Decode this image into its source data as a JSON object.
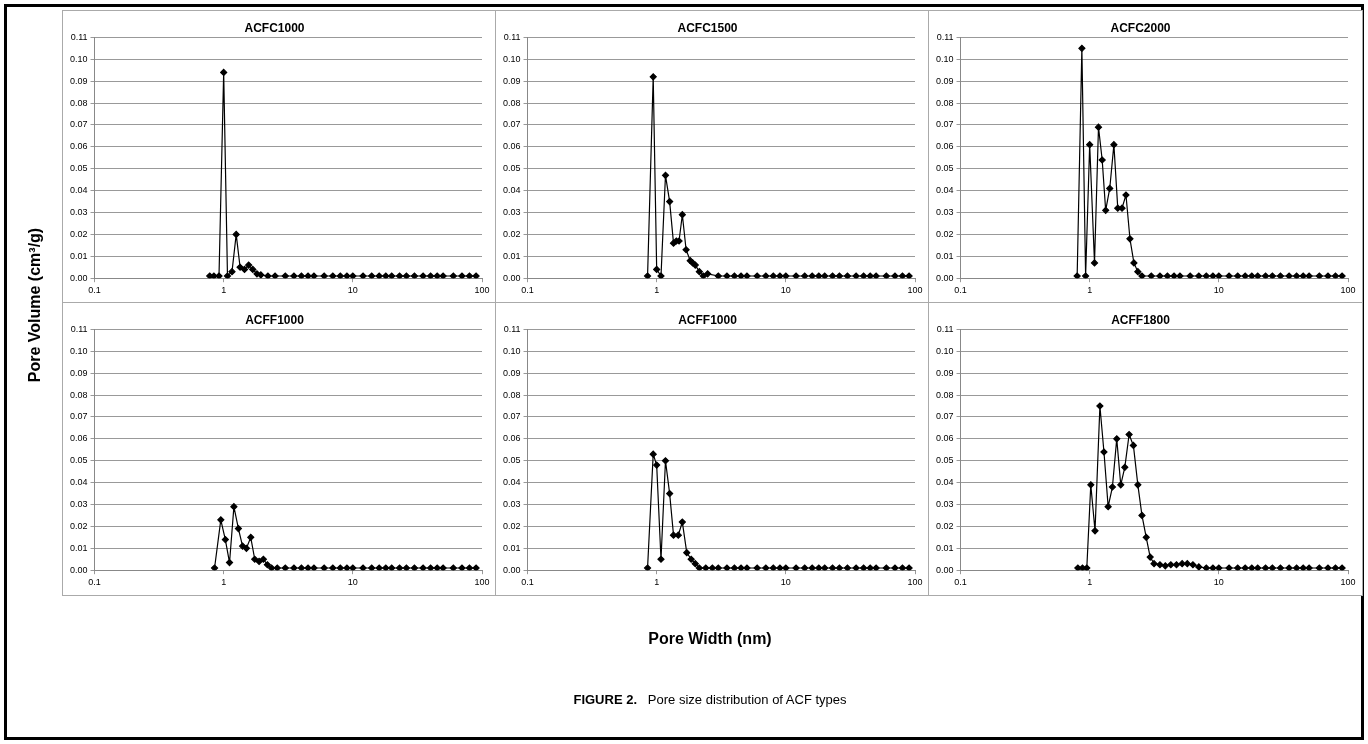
{
  "chart_data": [
    {
      "type": "line",
      "title": "ACFC1000",
      "ylabel": "Pore Volume (cm³/g)",
      "log": "x",
      "grid": "y",
      "marker": "diamond",
      "xlim": [
        0.1,
        100
      ],
      "xticks": [
        0.1,
        1,
        10,
        100
      ],
      "ylim": [
        0,
        0.11
      ],
      "yticks": [
        {
          "value": 0,
          "label": "0.00"
        },
        {
          "value": 0.01,
          "label": "0.01"
        },
        {
          "value": 0.02,
          "label": "0.02"
        },
        {
          "value": 0.03,
          "label": "0.03"
        },
        {
          "value": 0.04,
          "label": "0.04"
        },
        {
          "value": 0.05,
          "label": "0.05"
        },
        {
          "value": 0.06,
          "label": "0.06"
        },
        {
          "value": 0.07,
          "label": "0.07"
        },
        {
          "value": 0.08,
          "label": "0.08"
        },
        {
          "value": 0.09,
          "label": "0.09"
        },
        {
          "value": 0.1,
          "label": "0.10"
        },
        {
          "value": 0.11,
          "label": "0.11"
        }
      ],
      "series": [
        {
          "color": "#000000",
          "x": [
            0.78,
            0.84,
            0.92,
            1.0,
            1.07,
            1.16,
            1.25,
            1.34,
            1.45,
            1.56,
            1.68,
            1.81,
            1.94,
            2.2,
            2.5,
            3,
            3.5,
            4,
            4.5,
            5,
            6,
            7,
            8,
            9,
            10,
            12,
            14,
            16,
            18,
            20,
            23,
            26,
            30,
            35,
            40,
            45,
            50,
            60,
            70,
            80,
            90
          ],
          "values": [
            0.001,
            0.001,
            0.001,
            0.094,
            0.001,
            0.003,
            0.02,
            0.005,
            0.004,
            0.006,
            0.004,
            0.002,
            0.0015,
            0.001,
            0.001,
            0.001,
            0.001,
            0.001,
            0.001,
            0.001,
            0.001,
            0.001,
            0.001,
            0.001,
            0.001,
            0.001,
            0.001,
            0.001,
            0.001,
            0.001,
            0.001,
            0.001,
            0.001,
            0.001,
            0.001,
            0.001,
            0.001,
            0.001,
            0.001,
            0.001,
            0.001
          ]
        }
      ]
    },
    {
      "type": "line",
      "title": "ACFC1500",
      "log": "x",
      "grid": "y",
      "marker": "diamond",
      "xlim": [
        0.1,
        100
      ],
      "xticks": [
        0.1,
        1,
        10,
        100
      ],
      "ylim": [
        0,
        0.11
      ],
      "yticks": [
        {
          "value": 0,
          "label": "0.00"
        },
        {
          "value": 0.01,
          "label": "0.01"
        },
        {
          "value": 0.02,
          "label": "0.02"
        },
        {
          "value": 0.03,
          "label": "0.03"
        },
        {
          "value": 0.04,
          "label": "0.04"
        },
        {
          "value": 0.05,
          "label": "0.05"
        },
        {
          "value": 0.06,
          "label": "0.06"
        },
        {
          "value": 0.07,
          "label": "0.07"
        },
        {
          "value": 0.08,
          "label": "0.08"
        },
        {
          "value": 0.09,
          "label": "0.09"
        },
        {
          "value": 0.1,
          "label": "0.10"
        },
        {
          "value": 0.11,
          "label": "0.11"
        }
      ],
      "series": [
        {
          "color": "#000000",
          "x": [
            0.85,
            0.94,
            1.0,
            1.08,
            1.17,
            1.26,
            1.35,
            1.42,
            1.49,
            1.58,
            1.69,
            1.82,
            1.9,
            1.99,
            2.14,
            2.3,
            2.48,
            3,
            3.5,
            4,
            4.5,
            5,
            6,
            7,
            8,
            9,
            10,
            12,
            14,
            16,
            18,
            20,
            23,
            26,
            30,
            35,
            40,
            45,
            50,
            60,
            70,
            80,
            90
          ],
          "values": [
            0.001,
            0.092,
            0.004,
            0.001,
            0.047,
            0.035,
            0.016,
            0.017,
            0.017,
            0.029,
            0.013,
            0.008,
            0.007,
            0.006,
            0.003,
            0.001,
            0.002,
            0.001,
            0.001,
            0.001,
            0.001,
            0.001,
            0.001,
            0.001,
            0.001,
            0.001,
            0.001,
            0.001,
            0.001,
            0.001,
            0.001,
            0.001,
            0.001,
            0.001,
            0.001,
            0.001,
            0.001,
            0.001,
            0.001,
            0.001,
            0.001,
            0.001,
            0.001
          ]
        }
      ]
    },
    {
      "type": "line",
      "title": "ACFC2000",
      "log": "x",
      "grid": "y",
      "marker": "diamond",
      "xlim": [
        0.1,
        100
      ],
      "xticks": [
        0.1,
        1,
        10,
        100
      ],
      "ylim": [
        0,
        0.11
      ],
      "yticks": [
        {
          "value": 0,
          "label": "0.00"
        },
        {
          "value": 0.01,
          "label": "0.01"
        },
        {
          "value": 0.02,
          "label": "0.02"
        },
        {
          "value": 0.03,
          "label": "0.03"
        },
        {
          "value": 0.04,
          "label": "0.04"
        },
        {
          "value": 0.05,
          "label": "0.05"
        },
        {
          "value": 0.06,
          "label": "0.06"
        },
        {
          "value": 0.07,
          "label": "0.07"
        },
        {
          "value": 0.08,
          "label": "0.08"
        },
        {
          "value": 0.09,
          "label": "0.09"
        },
        {
          "value": 0.1,
          "label": "0.10"
        },
        {
          "value": 0.11,
          "label": "0.11"
        }
      ],
      "series": [
        {
          "color": "#000000",
          "x": [
            0.8,
            0.87,
            0.93,
            1.0,
            1.09,
            1.17,
            1.25,
            1.33,
            1.43,
            1.54,
            1.65,
            1.78,
            1.91,
            2.05,
            2.2,
            2.36,
            2.54,
            3,
            3.5,
            4,
            4.5,
            5,
            6,
            7,
            8,
            9,
            10,
            12,
            14,
            16,
            18,
            20,
            23,
            26,
            30,
            35,
            40,
            45,
            50,
            60,
            70,
            80,
            90
          ],
          "values": [
            0.001,
            0.105,
            0.001,
            0.061,
            0.007,
            0.069,
            0.054,
            0.031,
            0.041,
            0.061,
            0.032,
            0.032,
            0.038,
            0.018,
            0.007,
            0.003,
            0.001,
            0.001,
            0.001,
            0.001,
            0.001,
            0.001,
            0.001,
            0.001,
            0.001,
            0.001,
            0.001,
            0.001,
            0.001,
            0.001,
            0.001,
            0.001,
            0.001,
            0.001,
            0.001,
            0.001,
            0.001,
            0.001,
            0.001,
            0.001,
            0.001,
            0.001,
            0.001
          ]
        }
      ]
    },
    {
      "type": "line",
      "title": "ACFF1000",
      "log": "x",
      "grid": "y",
      "marker": "diamond",
      "xlim": [
        0.1,
        100
      ],
      "xticks": [
        0.1,
        1,
        10,
        100
      ],
      "ylim": [
        0,
        0.11
      ],
      "yticks": [
        {
          "value": 0,
          "label": "0.00"
        },
        {
          "value": 0.01,
          "label": "0.01"
        },
        {
          "value": 0.02,
          "label": "0.02"
        },
        {
          "value": 0.03,
          "label": "0.03"
        },
        {
          "value": 0.04,
          "label": "0.04"
        },
        {
          "value": 0.05,
          "label": "0.05"
        },
        {
          "value": 0.06,
          "label": "0.06"
        },
        {
          "value": 0.07,
          "label": "0.07"
        },
        {
          "value": 0.08,
          "label": "0.08"
        },
        {
          "value": 0.09,
          "label": "0.09"
        },
        {
          "value": 0.1,
          "label": "0.10"
        },
        {
          "value": 0.11,
          "label": "0.11"
        }
      ],
      "series": [
        {
          "color": "#000000",
          "x": [
            0.85,
            0.95,
            1.03,
            1.11,
            1.2,
            1.3,
            1.4,
            1.5,
            1.62,
            1.74,
            1.88,
            2.03,
            2.18,
            2.35,
            2.6,
            3,
            3.5,
            4,
            4.5,
            5,
            6,
            7,
            8,
            9,
            10,
            12,
            14,
            16,
            18,
            20,
            23,
            26,
            30,
            35,
            40,
            45,
            50,
            60,
            70,
            80,
            90
          ],
          "values": [
            0.001,
            0.023,
            0.014,
            0.0035,
            0.029,
            0.019,
            0.011,
            0.01,
            0.015,
            0.005,
            0.004,
            0.005,
            0.0025,
            0.001,
            0.001,
            0.001,
            0.001,
            0.001,
            0.001,
            0.001,
            0.001,
            0.001,
            0.001,
            0.001,
            0.001,
            0.001,
            0.001,
            0.001,
            0.001,
            0.001,
            0.001,
            0.001,
            0.001,
            0.001,
            0.001,
            0.001,
            0.001,
            0.001,
            0.001,
            0.001,
            0.001
          ]
        }
      ]
    },
    {
      "type": "line",
      "title": "ACFF1000",
      "xlabel": "Pore Width (nm)",
      "annotations": [
        "FIGURE 2.   Pore size distribution of ACF types"
      ],
      "log": "x",
      "grid": "y",
      "marker": "diamond",
      "xlim": [
        0.1,
        100
      ],
      "xticks": [
        0.1,
        1,
        10,
        100
      ],
      "ylim": [
        0,
        0.11
      ],
      "yticks": [
        {
          "value": 0,
          "label": "0.00"
        },
        {
          "value": 0.01,
          "label": "0.01"
        },
        {
          "value": 0.02,
          "label": "0.02"
        },
        {
          "value": 0.03,
          "label": "0.03"
        },
        {
          "value": 0.04,
          "label": "0.04"
        },
        {
          "value": 0.05,
          "label": "0.05"
        },
        {
          "value": 0.06,
          "label": "0.06"
        },
        {
          "value": 0.07,
          "label": "0.07"
        },
        {
          "value": 0.08,
          "label": "0.08"
        },
        {
          "value": 0.09,
          "label": "0.09"
        },
        {
          "value": 0.1,
          "label": "0.10"
        },
        {
          "value": 0.11,
          "label": "0.11"
        }
      ],
      "series": [
        {
          "color": "#000000",
          "x": [
            0.85,
            0.94,
            1.0,
            1.08,
            1.17,
            1.26,
            1.35,
            1.47,
            1.58,
            1.71,
            1.85,
            1.99,
            2.14,
            2.4,
            2.7,
            3,
            3.5,
            4,
            4.5,
            5,
            6,
            7,
            8,
            9,
            10,
            12,
            14,
            16,
            18,
            20,
            23,
            26,
            30,
            35,
            40,
            45,
            50,
            60,
            70,
            80,
            90
          ],
          "values": [
            0.001,
            0.053,
            0.048,
            0.005,
            0.05,
            0.035,
            0.016,
            0.016,
            0.022,
            0.008,
            0.005,
            0.003,
            0.001,
            0.001,
            0.001,
            0.001,
            0.001,
            0.001,
            0.001,
            0.001,
            0.001,
            0.001,
            0.001,
            0.001,
            0.001,
            0.001,
            0.001,
            0.001,
            0.001,
            0.001,
            0.001,
            0.001,
            0.001,
            0.001,
            0.001,
            0.001,
            0.001,
            0.001,
            0.001,
            0.001,
            0.001
          ]
        }
      ]
    },
    {
      "type": "line",
      "title": "ACFF1800",
      "log": "x",
      "grid": "y",
      "marker": "diamond",
      "xlim": [
        0.1,
        100
      ],
      "xticks": [
        0.1,
        1,
        10,
        100
      ],
      "ylim": [
        0,
        0.11
      ],
      "yticks": [
        {
          "value": 0,
          "label": "0.00"
        },
        {
          "value": 0.01,
          "label": "0.01"
        },
        {
          "value": 0.02,
          "label": "0.02"
        },
        {
          "value": 0.03,
          "label": "0.03"
        },
        {
          "value": 0.04,
          "label": "0.04"
        },
        {
          "value": 0.05,
          "label": "0.05"
        },
        {
          "value": 0.06,
          "label": "0.06"
        },
        {
          "value": 0.07,
          "label": "0.07"
        },
        {
          "value": 0.08,
          "label": "0.08"
        },
        {
          "value": 0.09,
          "label": "0.09"
        },
        {
          "value": 0.1,
          "label": "0.10"
        },
        {
          "value": 0.11,
          "label": "0.11"
        }
      ],
      "series": [
        {
          "color": "#000000",
          "x": [
            0.81,
            0.88,
            0.95,
            1.02,
            1.1,
            1.2,
            1.29,
            1.39,
            1.5,
            1.62,
            1.74,
            1.87,
            2.02,
            2.18,
            2.36,
            2.54,
            2.74,
            2.94,
            3.15,
            3.5,
            3.85,
            4.25,
            4.7,
            5.2,
            5.7,
            6.3,
            7,
            8,
            9,
            10,
            12,
            14,
            16,
            18,
            20,
            23,
            26,
            30,
            35,
            40,
            45,
            50,
            60,
            70,
            80,
            90
          ],
          "values": [
            0.001,
            0.001,
            0.001,
            0.039,
            0.018,
            0.075,
            0.054,
            0.029,
            0.038,
            0.06,
            0.039,
            0.047,
            0.062,
            0.057,
            0.039,
            0.025,
            0.015,
            0.006,
            0.003,
            0.0025,
            0.002,
            0.0025,
            0.0025,
            0.003,
            0.003,
            0.0025,
            0.0015,
            0.001,
            0.001,
            0.001,
            0.001,
            0.001,
            0.001,
            0.001,
            0.001,
            0.001,
            0.001,
            0.001,
            0.001,
            0.001,
            0.001,
            0.001,
            0.001,
            0.001,
            0.001,
            0.001
          ]
        }
      ]
    }
  ]
}
